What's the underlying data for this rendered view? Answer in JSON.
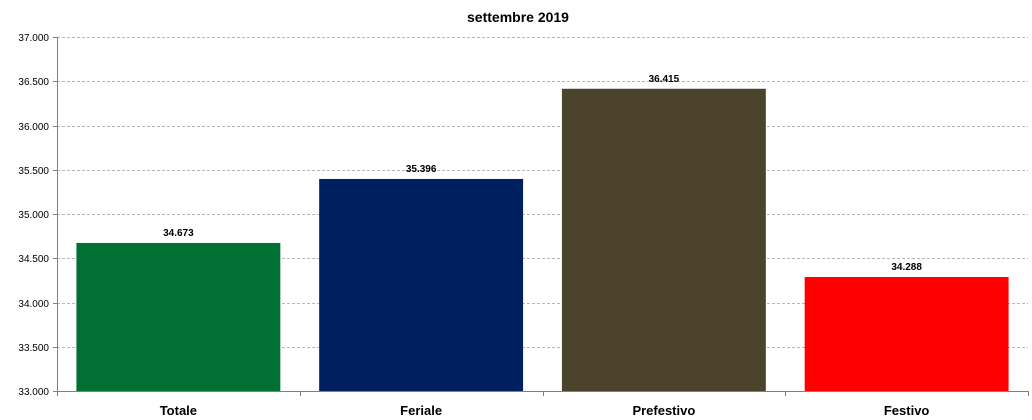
{
  "chart_data": {
    "type": "bar",
    "title": "settembre 2019",
    "xlabel": "",
    "ylabel": "",
    "categories": [
      "Totale",
      "Feriale",
      "Prefestivo",
      "Festivo"
    ],
    "values": [
      34673,
      35396,
      36415,
      34288
    ],
    "value_labels": [
      "34.673",
      "35.396",
      "36.415",
      "34.288"
    ],
    "colors": [
      "#017033",
      "#001f5f",
      "#4b432c",
      "#ff0000"
    ],
    "ylim": [
      33000,
      37000
    ],
    "y_ticks": [
      33000,
      33500,
      34000,
      34500,
      35000,
      35500,
      36000,
      36500,
      37000
    ],
    "y_tick_labels": [
      "33.000",
      "33.500",
      "34.000",
      "34.500",
      "35.000",
      "35.500",
      "36.000",
      "36.500",
      "37.000"
    ],
    "grid": true,
    "legend": "none"
  }
}
